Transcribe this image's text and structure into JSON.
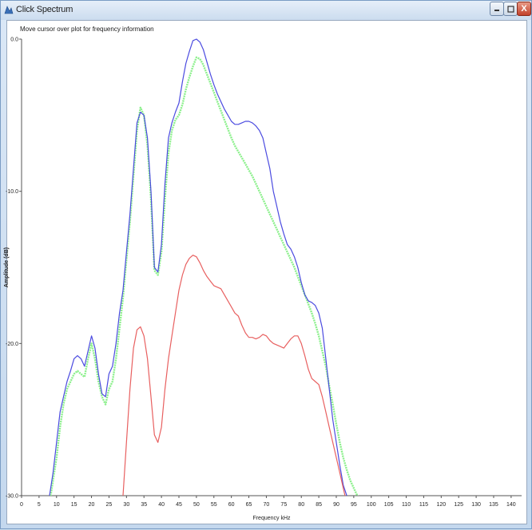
{
  "window": {
    "title": "Click Spectrum",
    "icons": {
      "app": "click-spectrum-app-icon",
      "minimize": "minimize-icon",
      "maximize": "maximize-icon",
      "close": "close-icon"
    },
    "close_glyph": "X"
  },
  "hint_text": "Move cursor over plot for frequency information",
  "chart_data": {
    "type": "line",
    "xlabel": "Frequency kHz",
    "ylabel": "Amplitude (dB)",
    "xlim": [
      0,
      143
    ],
    "ylim": [
      -30,
      0
    ],
    "xticks": [
      0,
      5,
      10,
      15,
      20,
      25,
      30,
      35,
      40,
      45,
      50,
      55,
      60,
      65,
      70,
      75,
      80,
      85,
      90,
      95,
      100,
      105,
      110,
      115,
      120,
      125,
      130,
      135,
      140
    ],
    "yticks": [
      0,
      -10,
      -20,
      -30
    ],
    "ytick_labels": [
      "0.0",
      "-10.0",
      "-20.0",
      "-30.0"
    ],
    "grid": false,
    "series": [
      {
        "color": "#4b4be0",
        "x": [
          4.0,
          5.0,
          6.0,
          7.0,
          8.0,
          9.0,
          10.0,
          11.0,
          12.0,
          13.0,
          14.0,
          15.0,
          16.0,
          17.0,
          18.0,
          19.0,
          20.0,
          21.0,
          22.0,
          23.0,
          24.0,
          25.0,
          26.0,
          27.0,
          28.0,
          29.0,
          30.0,
          31.0,
          32.0,
          33.0,
          34.0,
          35.0,
          36.0,
          37.0,
          38.0,
          39.0,
          40.0,
          41.0,
          42.0,
          43.0,
          44.0,
          45.0,
          46.0,
          47.0,
          48.0,
          49.0,
          50.0,
          51.0,
          52.0,
          53.0,
          54.0,
          55.0,
          56.0,
          57.0,
          58.0,
          59.0,
          60.0,
          61.0,
          62.0,
          63.0,
          64.0,
          65.0,
          66.0,
          67.0,
          68.0,
          69.0,
          70.0,
          71.0,
          72.0,
          73.0,
          74.0,
          75.0,
          76.0,
          77.0,
          78.0,
          79.0,
          80.0,
          81.0,
          82.0,
          83.0,
          84.0,
          85.0,
          86.0,
          87.0,
          88.0,
          89.0,
          90.0,
          91.0,
          92.0,
          93.0
        ],
        "y": [
          -31.0,
          -31.0,
          -31.0,
          -31.0,
          -30.0,
          -28.5,
          -26.5,
          -24.5,
          -23.5,
          -22.5,
          -21.8,
          -21.0,
          -20.8,
          -21.0,
          -21.5,
          -20.5,
          -19.5,
          -20.3,
          -22.0,
          -23.3,
          -23.5,
          -22.0,
          -21.5,
          -20.0,
          -18.0,
          -16.5,
          -14.0,
          -11.5,
          -8.5,
          -5.5,
          -4.8,
          -5.0,
          -6.5,
          -10.0,
          -15.0,
          -15.3,
          -13.5,
          -9.5,
          -6.5,
          -5.5,
          -4.8,
          -4.2,
          -2.8,
          -1.6,
          -0.8,
          -0.1,
          0.0,
          -0.2,
          -0.7,
          -1.5,
          -2.3,
          -3.0,
          -3.6,
          -4.1,
          -4.6,
          -5.0,
          -5.4,
          -5.6,
          -5.6,
          -5.5,
          -5.4,
          -5.4,
          -5.5,
          -5.7,
          -6.0,
          -6.5,
          -7.5,
          -8.5,
          -10.0,
          -11.0,
          -12.0,
          -12.8,
          -13.5,
          -13.8,
          -14.3,
          -15.0,
          -16.0,
          -16.8,
          -17.2,
          -17.3,
          -17.5,
          -18.0,
          -19.0,
          -21.0,
          -23.0,
          -25.0,
          -26.5,
          -28.0,
          -29.3,
          -30.0
        ]
      },
      {
        "color": "#8cf08c",
        "x": [
          4.0,
          5.0,
          6.0,
          7.0,
          8.0,
          9.0,
          10.0,
          11.0,
          12.0,
          13.0,
          14.0,
          15.0,
          16.0,
          17.0,
          18.0,
          19.0,
          20.0,
          21.0,
          22.0,
          23.0,
          24.0,
          25.0,
          26.0,
          27.0,
          28.0,
          29.0,
          30.0,
          31.0,
          32.0,
          33.0,
          34.0,
          35.0,
          36.0,
          37.0,
          38.0,
          39.0,
          40.0,
          41.0,
          42.0,
          43.0,
          44.0,
          45.0,
          46.0,
          47.0,
          48.0,
          49.0,
          50.0,
          51.0,
          52.0,
          53.0,
          54.0,
          55.0,
          56.0,
          57.0,
          58.0,
          59.0,
          60.0,
          61.0,
          62.0,
          63.0,
          64.0,
          65.0,
          66.0,
          67.0,
          68.0,
          69.0,
          70.0,
          71.0,
          72.0,
          73.0,
          74.0,
          75.0,
          76.0,
          77.0,
          78.0,
          79.0,
          80.0,
          81.0,
          82.0,
          83.0,
          84.0,
          85.0,
          86.0,
          87.0,
          88.0,
          89.0,
          90.0,
          91.0,
          92.0,
          93.0,
          94.0,
          95.0,
          96.0,
          97.0,
          98.0,
          99.0,
          100.0,
          101.0,
          102.0,
          103.0,
          104.0
        ],
        "y": [
          -31.0,
          -31.0,
          -31.0,
          -31.0,
          -30.5,
          -29.0,
          -27.5,
          -25.5,
          -24.0,
          -23.0,
          -22.5,
          -22.0,
          -21.8,
          -22.0,
          -22.2,
          -21.0,
          -20.0,
          -21.0,
          -22.5,
          -23.5,
          -24.0,
          -23.0,
          -22.5,
          -21.0,
          -19.0,
          -17.0,
          -14.5,
          -12.0,
          -9.0,
          -6.0,
          -4.5,
          -5.0,
          -7.0,
          -10.5,
          -15.2,
          -15.5,
          -14.0,
          -10.5,
          -7.5,
          -6.0,
          -5.3,
          -5.0,
          -4.3,
          -3.3,
          -2.5,
          -1.8,
          -1.2,
          -1.3,
          -1.7,
          -2.3,
          -2.9,
          -3.5,
          -4.1,
          -4.7,
          -5.3,
          -5.9,
          -6.5,
          -7.0,
          -7.4,
          -7.8,
          -8.2,
          -8.6,
          -9.0,
          -9.5,
          -10.0,
          -10.5,
          -11.0,
          -11.5,
          -12.0,
          -12.5,
          -13.0,
          -13.5,
          -14.0,
          -14.5,
          -15.0,
          -15.6,
          -16.2,
          -16.8,
          -17.4,
          -18.0,
          -18.7,
          -19.5,
          -20.5,
          -21.5,
          -22.8,
          -24.0,
          -25.3,
          -26.5,
          -27.5,
          -28.3,
          -29.0,
          -29.5,
          -30.0,
          -30.3,
          -30.6,
          -31.0,
          -31.0,
          -31.0,
          -31.0,
          -31.0,
          -31.0
        ]
      },
      {
        "color": "#e86060",
        "x": [
          29.0,
          30.0,
          31.0,
          32.0,
          33.0,
          34.0,
          35.0,
          36.0,
          37.0,
          38.0,
          39.0,
          40.0,
          41.0,
          42.0,
          43.0,
          44.0,
          45.0,
          46.0,
          47.0,
          48.0,
          49.0,
          50.0,
          51.0,
          52.0,
          53.0,
          54.0,
          55.0,
          56.0,
          57.0,
          58.0,
          59.0,
          60.0,
          61.0,
          62.0,
          63.0,
          64.0,
          65.0,
          66.0,
          67.0,
          68.0,
          69.0,
          70.0,
          71.0,
          72.0,
          73.0,
          74.0,
          75.0,
          76.0,
          77.0,
          78.0,
          79.0,
          80.0,
          81.0,
          82.0,
          83.0,
          84.0,
          85.0,
          86.0,
          87.0,
          88.0,
          89.0,
          90.0,
          91.0,
          92.0,
          93.0
        ],
        "y": [
          -30.0,
          -26.5,
          -23.0,
          -20.3,
          -19.1,
          -18.9,
          -19.5,
          -21.0,
          -23.5,
          -26.0,
          -26.5,
          -25.5,
          -23.0,
          -21.0,
          -19.5,
          -18.0,
          -16.5,
          -15.5,
          -14.8,
          -14.4,
          -14.2,
          -14.3,
          -14.7,
          -15.2,
          -15.6,
          -15.9,
          -16.2,
          -16.3,
          -16.4,
          -16.8,
          -17.2,
          -17.6,
          -18.0,
          -18.2,
          -18.8,
          -19.3,
          -19.6,
          -19.6,
          -19.7,
          -19.6,
          -19.4,
          -19.5,
          -19.8,
          -20.0,
          -20.1,
          -20.2,
          -20.3,
          -20.0,
          -19.7,
          -19.5,
          -19.5,
          -20.0,
          -20.8,
          -21.7,
          -22.3,
          -22.5,
          -22.7,
          -23.5,
          -24.5,
          -25.5,
          -26.5,
          -27.5,
          -28.5,
          -29.5,
          -30.5
        ]
      }
    ]
  }
}
